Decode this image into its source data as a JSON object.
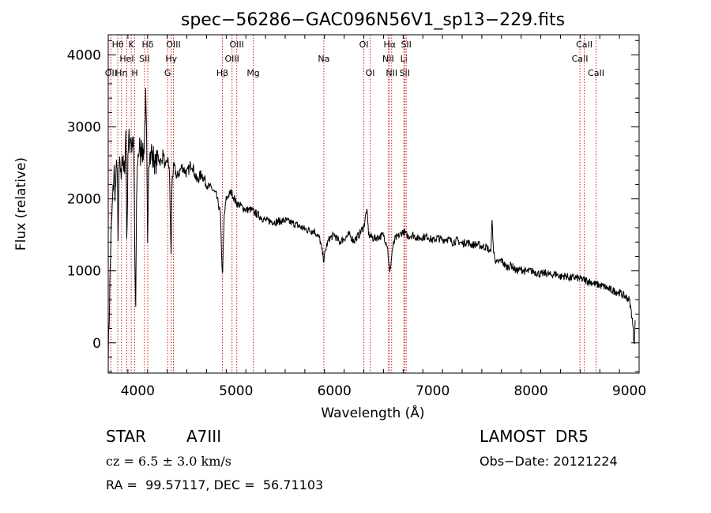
{
  "chart_data": {
    "type": "line",
    "title": "spec−56286−GAC096N56V1_sp13−229.fits",
    "xlabel": "Wavelength (Å)",
    "ylabel": "Flux (relative)",
    "xlim": [
      3700,
      9100
    ],
    "ylim": [
      -420,
      4280
    ],
    "x_ticks": [
      4000,
      5000,
      6000,
      7000,
      8000,
      9000
    ],
    "y_ticks": [
      0,
      1000,
      2000,
      3000,
      4000
    ],
    "grid": false,
    "legend": "none",
    "series": [
      {
        "color": "#000000",
        "points": [
          [
            3700,
            -100
          ],
          [
            3710,
            350
          ],
          [
            3720,
            1050
          ],
          [
            3730,
            1500
          ],
          [
            3740,
            1850
          ],
          [
            3750,
            2150
          ],
          [
            3760,
            2400
          ],
          [
            3770,
            2050
          ],
          [
            3780,
            2300
          ],
          [
            3790,
            2650
          ],
          [
            3800,
            1350
          ],
          [
            3810,
            2300
          ],
          [
            3820,
            2550
          ],
          [
            3830,
            2250
          ],
          [
            3840,
            2650
          ],
          [
            3850,
            2500
          ],
          [
            3860,
            2300
          ],
          [
            3870,
            2550
          ],
          [
            3880,
            2950
          ],
          [
            3890,
            1200
          ],
          [
            3900,
            2650
          ],
          [
            3910,
            2850
          ],
          [
            3920,
            2750
          ],
          [
            3930,
            2950
          ],
          [
            3940,
            2700
          ],
          [
            3950,
            2850
          ],
          [
            3960,
            2650
          ],
          [
            3970,
            1150
          ],
          [
            3980,
            500
          ],
          [
            3990,
            2150
          ],
          [
            4000,
            2550
          ],
          [
            4010,
            2650
          ],
          [
            4020,
            2750
          ],
          [
            4030,
            2550
          ],
          [
            4040,
            2850
          ],
          [
            4050,
            2600
          ],
          [
            4060,
            2650
          ],
          [
            4070,
            2900
          ],
          [
            4080,
            3400
          ],
          [
            4090,
            2800
          ],
          [
            4100,
            1300
          ],
          [
            4110,
            2500
          ],
          [
            4120,
            2650
          ],
          [
            4130,
            2550
          ],
          [
            4140,
            2700
          ],
          [
            4150,
            2500
          ],
          [
            4160,
            2600
          ],
          [
            4180,
            2450
          ],
          [
            4200,
            2600
          ],
          [
            4220,
            2550
          ],
          [
            4240,
            2500
          ],
          [
            4260,
            2650
          ],
          [
            4280,
            2400
          ],
          [
            4300,
            2550
          ],
          [
            4320,
            2450
          ],
          [
            4340,
            1200
          ],
          [
            4350,
            2300
          ],
          [
            4370,
            2450
          ],
          [
            4400,
            2300
          ],
          [
            4450,
            2450
          ],
          [
            4500,
            2350
          ],
          [
            4550,
            2500
          ],
          [
            4600,
            2250
          ],
          [
            4650,
            2350
          ],
          [
            4700,
            2200
          ],
          [
            4750,
            2150
          ],
          [
            4800,
            2050
          ],
          [
            4840,
            1800
          ],
          [
            4861,
            900
          ],
          [
            4880,
            1750
          ],
          [
            4900,
            2000
          ],
          [
            4950,
            2100
          ],
          [
            5000,
            1950
          ],
          [
            5050,
            1900
          ],
          [
            5100,
            1850
          ],
          [
            5150,
            1850
          ],
          [
            5200,
            1800
          ],
          [
            5300,
            1700
          ],
          [
            5400,
            1680
          ],
          [
            5500,
            1700
          ],
          [
            5600,
            1650
          ],
          [
            5700,
            1580
          ],
          [
            5800,
            1550
          ],
          [
            5850,
            1450
          ],
          [
            5893,
            1150
          ],
          [
            5920,
            1350
          ],
          [
            5950,
            1450
          ],
          [
            6000,
            1500
          ],
          [
            6050,
            1400
          ],
          [
            6100,
            1450
          ],
          [
            6150,
            1500
          ],
          [
            6200,
            1420
          ],
          [
            6250,
            1500
          ],
          [
            6300,
            1620
          ],
          [
            6330,
            1850
          ],
          [
            6350,
            1500
          ],
          [
            6400,
            1450
          ],
          [
            6450,
            1470
          ],
          [
            6500,
            1500
          ],
          [
            6540,
            1350
          ],
          [
            6563,
            950
          ],
          [
            6590,
            1300
          ],
          [
            6620,
            1450
          ],
          [
            6650,
            1480
          ],
          [
            6700,
            1550
          ],
          [
            6750,
            1480
          ],
          [
            6800,
            1500
          ],
          [
            6850,
            1450
          ],
          [
            6900,
            1470
          ],
          [
            6950,
            1480
          ],
          [
            7000,
            1420
          ],
          [
            7050,
            1460
          ],
          [
            7100,
            1430
          ],
          [
            7150,
            1450
          ],
          [
            7200,
            1400
          ],
          [
            7250,
            1420
          ],
          [
            7300,
            1380
          ],
          [
            7350,
            1400
          ],
          [
            7400,
            1360
          ],
          [
            7450,
            1370
          ],
          [
            7500,
            1340
          ],
          [
            7550,
            1330
          ],
          [
            7590,
            1250
          ],
          [
            7605,
            1700
          ],
          [
            7620,
            1250
          ],
          [
            7650,
            1100
          ],
          [
            7700,
            1150
          ],
          [
            7750,
            1050
          ],
          [
            7800,
            1080
          ],
          [
            7850,
            1000
          ],
          [
            7900,
            1020
          ],
          [
            7950,
            990
          ],
          [
            8000,
            1000
          ],
          [
            8050,
            980
          ],
          [
            8100,
            950
          ],
          [
            8150,
            970
          ],
          [
            8200,
            940
          ],
          [
            8250,
            960
          ],
          [
            8300,
            920
          ],
          [
            8350,
            930
          ],
          [
            8400,
            900
          ],
          [
            8450,
            910
          ],
          [
            8500,
            890
          ],
          [
            8550,
            870
          ],
          [
            8600,
            850
          ],
          [
            8650,
            820
          ],
          [
            8700,
            800
          ],
          [
            8750,
            780
          ],
          [
            8800,
            740
          ],
          [
            8850,
            720
          ],
          [
            8900,
            700
          ],
          [
            8950,
            650
          ],
          [
            9000,
            600
          ],
          [
            9030,
            350
          ],
          [
            9050,
            -20
          ],
          [
            9060,
            300
          ]
        ]
      }
    ],
    "lines": [
      {
        "label": "OII",
        "x": 3727,
        "row": 2
      },
      {
        "label": "Hθ",
        "x": 3797,
        "row": 0
      },
      {
        "label": "Hη",
        "x": 3835,
        "row": 2
      },
      {
        "label": "HeI",
        "x": 3889,
        "row": 1
      },
      {
        "label": "K",
        "x": 3934,
        "row": 0
      },
      {
        "label": "H",
        "x": 3969,
        "row": 2
      },
      {
        "label": "SII",
        "x": 4069,
        "row": 1
      },
      {
        "label": "Hδ",
        "x": 4102,
        "row": 0
      },
      {
        "label": "G",
        "x": 4304,
        "row": 2
      },
      {
        "label": "Hγ",
        "x": 4341,
        "row": 1
      },
      {
        "label": "OIII",
        "x": 4363,
        "row": 0
      },
      {
        "label": "Hβ",
        "x": 4861,
        "row": 2
      },
      {
        "label": "OIII",
        "x": 4959,
        "row": 1
      },
      {
        "label": "OIII",
        "x": 5007,
        "row": 0
      },
      {
        "label": "Mg",
        "x": 5175,
        "row": 2
      },
      {
        "label": "Na",
        "x": 5893,
        "row": 1
      },
      {
        "label": "OI",
        "x": 6300,
        "row": 0
      },
      {
        "label": "OI",
        "x": 6364,
        "row": 2
      },
      {
        "label": "NII",
        "x": 6548,
        "row": 1
      },
      {
        "label": "Hα",
        "x": 6563,
        "row": 0
      },
      {
        "label": "NII",
        "x": 6583,
        "row": 2
      },
      {
        "label": "Li",
        "x": 6707,
        "row": 1
      },
      {
        "label": "SII",
        "x": 6716,
        "row": 2
      },
      {
        "label": "SII",
        "x": 6731,
        "row": 0
      },
      {
        "label": "CaII",
        "x": 8498,
        "row": 1
      },
      {
        "label": "CaII",
        "x": 8542,
        "row": 0
      },
      {
        "label": "CaII",
        "x": 8662,
        "row": 2
      }
    ]
  },
  "info": {
    "object_type": "STAR",
    "subclass": "A7III",
    "survey": "LAMOST  DR5",
    "cz": "cz = 6.5 ± 3.0 km/s",
    "obs_date": "Obs−Date: 20121224",
    "coords": "RA =  99.57117, DEC =  56.71103"
  }
}
